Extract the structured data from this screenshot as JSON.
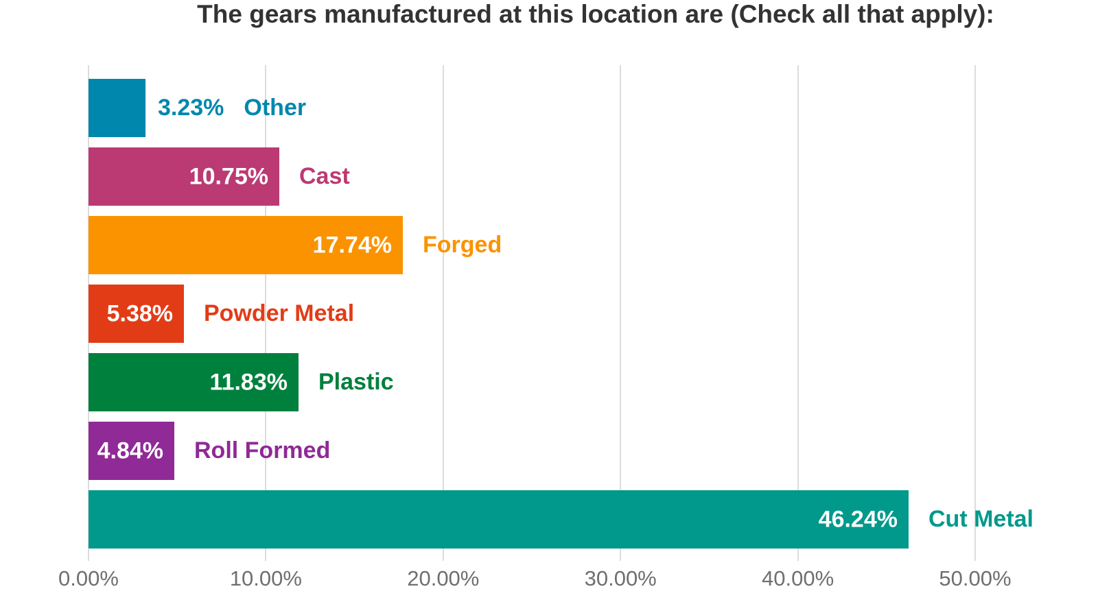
{
  "chart_data": {
    "type": "bar",
    "orientation": "horizontal",
    "title": "The gears manufactured at this location are (Check all that apply):",
    "xlabel": "",
    "ylabel": "",
    "legend": "none",
    "grid": "vertical",
    "axis_range_percent": [
      0,
      50
    ],
    "tick_step_percent": 10,
    "x_tick_labels": [
      "0.00%",
      "10.00%",
      "20.00%",
      "30.00%",
      "40.00%",
      "50.00%"
    ],
    "x_tick_values": [
      0,
      10,
      20,
      30,
      40,
      50
    ],
    "categories": [
      "Other",
      "Cast",
      "Forged",
      "Powder Metal",
      "Plastic",
      "Roll Formed",
      "Cut Metal"
    ],
    "values": [
      3.23,
      10.75,
      17.74,
      5.38,
      11.83,
      4.84,
      46.24
    ],
    "bars": [
      {
        "label": "Other",
        "value": 3.23,
        "display": "3.23%",
        "color": "#0087AD",
        "value_label_position": "outside"
      },
      {
        "label": "Cast",
        "value": 10.75,
        "display": "10.75%",
        "color": "#BB3A73",
        "value_label_position": "inside"
      },
      {
        "label": "Forged",
        "value": 17.74,
        "display": "17.74%",
        "color": "#FB9300",
        "value_label_position": "inside"
      },
      {
        "label": "Powder Metal",
        "value": 5.38,
        "display": "5.38%",
        "color": "#E23C17",
        "value_label_position": "inside"
      },
      {
        "label": "Plastic",
        "value": 11.83,
        "display": "11.83%",
        "color": "#00803D",
        "value_label_position": "inside"
      },
      {
        "label": "Roll Formed",
        "value": 4.84,
        "display": "4.84%",
        "color": "#8F2A96",
        "value_label_position": "inside"
      },
      {
        "label": "Cut Metal",
        "value": 46.24,
        "display": "46.24%",
        "color": "#00998B",
        "value_label_position": "inside"
      }
    ],
    "colors": {
      "title_text": "#333333",
      "axis_tick_text": "#6F6F6F",
      "gridline": "#DCDCDC",
      "value_label_inside": "#FFFFFF",
      "background": "#FFFFFF"
    }
  }
}
